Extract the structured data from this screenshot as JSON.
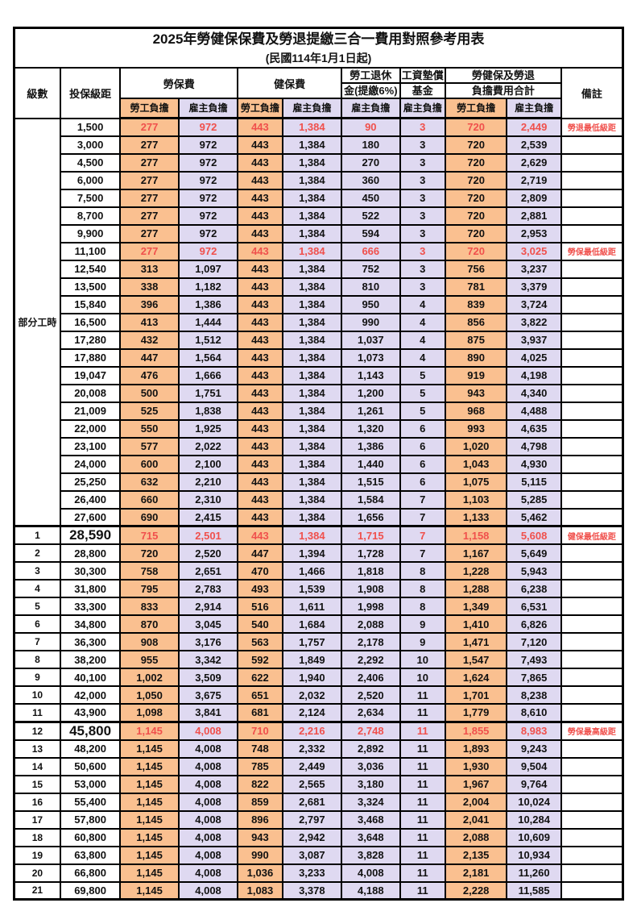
{
  "title": "2025年勞健保保費及勞退提繳三合一費用對照參考用表",
  "subtitle": "(民國114年1月1日起)",
  "colors": {
    "employee_burden_bg": "#FAC090",
    "employer_burden_bg": "#DFD9F1",
    "highlight_red": "#F0504C",
    "border": "#000000"
  },
  "header": {
    "level": "級數",
    "bracket": "投保級距",
    "labor_fee": "勞保費",
    "health_fee": "健保費",
    "pension_line1": "勞工退休",
    "pension_line2": "金(提繳6%)",
    "wage_fund_line1": "工資墊償",
    "wage_fund_line2": "基金",
    "total_line1": "勞健保及勞退",
    "total_line2": "負擔費用合計",
    "remark": "備註",
    "employee_burden": "勞工負擔",
    "employer_burden": "雇主負擔"
  },
  "table": {
    "part_time_label": "部分工時",
    "part_time_rows": [
      {
        "bracket": "1,500",
        "values": [
          "277",
          "972",
          "443",
          "1,384",
          "90",
          "3",
          "720",
          "2,449"
        ],
        "note": "勞退最低級距",
        "red": true,
        "key": false
      },
      {
        "bracket": "3,000",
        "values": [
          "277",
          "972",
          "443",
          "1,384",
          "180",
          "3",
          "720",
          "2,539"
        ],
        "note": "",
        "red": false,
        "key": false
      },
      {
        "bracket": "4,500",
        "values": [
          "277",
          "972",
          "443",
          "1,384",
          "270",
          "3",
          "720",
          "2,629"
        ],
        "note": "",
        "red": false,
        "key": false
      },
      {
        "bracket": "6,000",
        "values": [
          "277",
          "972",
          "443",
          "1,384",
          "360",
          "3",
          "720",
          "2,719"
        ],
        "note": "",
        "red": false,
        "key": false
      },
      {
        "bracket": "7,500",
        "values": [
          "277",
          "972",
          "443",
          "1,384",
          "450",
          "3",
          "720",
          "2,809"
        ],
        "note": "",
        "red": false,
        "key": false
      },
      {
        "bracket": "8,700",
        "values": [
          "277",
          "972",
          "443",
          "1,384",
          "522",
          "3",
          "720",
          "2,881"
        ],
        "note": "",
        "red": false,
        "key": false
      },
      {
        "bracket": "9,900",
        "values": [
          "277",
          "972",
          "443",
          "1,384",
          "594",
          "3",
          "720",
          "2,953"
        ],
        "note": "",
        "red": false,
        "key": false
      },
      {
        "bracket": "11,100",
        "values": [
          "277",
          "972",
          "443",
          "1,384",
          "666",
          "3",
          "720",
          "3,025"
        ],
        "note": "勞保最低級距",
        "red": true,
        "key": false
      },
      {
        "bracket": "12,540",
        "values": [
          "313",
          "1,097",
          "443",
          "1,384",
          "752",
          "3",
          "756",
          "3,237"
        ],
        "note": "",
        "red": false,
        "key": false
      },
      {
        "bracket": "13,500",
        "values": [
          "338",
          "1,182",
          "443",
          "1,384",
          "810",
          "3",
          "781",
          "3,379"
        ],
        "note": "",
        "red": false,
        "key": false
      },
      {
        "bracket": "15,840",
        "values": [
          "396",
          "1,386",
          "443",
          "1,384",
          "950",
          "4",
          "839",
          "3,724"
        ],
        "note": "",
        "red": false,
        "key": false
      },
      {
        "bracket": "16,500",
        "values": [
          "413",
          "1,444",
          "443",
          "1,384",
          "990",
          "4",
          "856",
          "3,822"
        ],
        "note": "",
        "red": false,
        "key": false
      },
      {
        "bracket": "17,280",
        "values": [
          "432",
          "1,512",
          "443",
          "1,384",
          "1,037",
          "4",
          "875",
          "3,937"
        ],
        "note": "",
        "red": false,
        "key": false
      },
      {
        "bracket": "17,880",
        "values": [
          "447",
          "1,564",
          "443",
          "1,384",
          "1,073",
          "4",
          "890",
          "4,025"
        ],
        "note": "",
        "red": false,
        "key": false
      },
      {
        "bracket": "19,047",
        "values": [
          "476",
          "1,666",
          "443",
          "1,384",
          "1,143",
          "5",
          "919",
          "4,198"
        ],
        "note": "",
        "red": false,
        "key": false
      },
      {
        "bracket": "20,008",
        "values": [
          "500",
          "1,751",
          "443",
          "1,384",
          "1,200",
          "5",
          "943",
          "4,340"
        ],
        "note": "",
        "red": false,
        "key": false
      },
      {
        "bracket": "21,009",
        "values": [
          "525",
          "1,838",
          "443",
          "1,384",
          "1,261",
          "5",
          "968",
          "4,488"
        ],
        "note": "",
        "red": false,
        "key": false
      },
      {
        "bracket": "22,000",
        "values": [
          "550",
          "1,925",
          "443",
          "1,384",
          "1,320",
          "6",
          "993",
          "4,635"
        ],
        "note": "",
        "red": false,
        "key": false
      },
      {
        "bracket": "23,100",
        "values": [
          "577",
          "2,022",
          "443",
          "1,384",
          "1,386",
          "6",
          "1,020",
          "4,798"
        ],
        "note": "",
        "red": false,
        "key": false
      },
      {
        "bracket": "24,000",
        "values": [
          "600",
          "2,100",
          "443",
          "1,384",
          "1,440",
          "6",
          "1,043",
          "4,930"
        ],
        "note": "",
        "red": false,
        "key": false
      },
      {
        "bracket": "25,250",
        "values": [
          "632",
          "2,210",
          "443",
          "1,384",
          "1,515",
          "6",
          "1,075",
          "5,115"
        ],
        "note": "",
        "red": false,
        "key": false
      },
      {
        "bracket": "26,400",
        "values": [
          "660",
          "2,310",
          "443",
          "1,384",
          "1,584",
          "7",
          "1,103",
          "5,285"
        ],
        "note": "",
        "red": false,
        "key": false
      },
      {
        "bracket": "27,600",
        "values": [
          "690",
          "2,415",
          "443",
          "1,384",
          "1,656",
          "7",
          "1,133",
          "5,462"
        ],
        "note": "",
        "red": false,
        "key": false
      }
    ],
    "numbered_rows": [
      {
        "level": "1",
        "bracket": "28,590",
        "values": [
          "715",
          "2,501",
          "443",
          "1,384",
          "1,715",
          "7",
          "1,158",
          "5,608"
        ],
        "note": "健保最低級距",
        "red": true,
        "key": true
      },
      {
        "level": "2",
        "bracket": "28,800",
        "values": [
          "720",
          "2,520",
          "447",
          "1,394",
          "1,728",
          "7",
          "1,167",
          "5,649"
        ],
        "note": "",
        "red": false,
        "key": false
      },
      {
        "level": "3",
        "bracket": "30,300",
        "values": [
          "758",
          "2,651",
          "470",
          "1,466",
          "1,818",
          "8",
          "1,228",
          "5,943"
        ],
        "note": "",
        "red": false,
        "key": false
      },
      {
        "level": "4",
        "bracket": "31,800",
        "values": [
          "795",
          "2,783",
          "493",
          "1,539",
          "1,908",
          "8",
          "1,288",
          "6,238"
        ],
        "note": "",
        "red": false,
        "key": false
      },
      {
        "level": "5",
        "bracket": "33,300",
        "values": [
          "833",
          "2,914",
          "516",
          "1,611",
          "1,998",
          "8",
          "1,349",
          "6,531"
        ],
        "note": "",
        "red": false,
        "key": false
      },
      {
        "level": "6",
        "bracket": "34,800",
        "values": [
          "870",
          "3,045",
          "540",
          "1,684",
          "2,088",
          "9",
          "1,410",
          "6,826"
        ],
        "note": "",
        "red": false,
        "key": false
      },
      {
        "level": "7",
        "bracket": "36,300",
        "values": [
          "908",
          "3,176",
          "563",
          "1,757",
          "2,178",
          "9",
          "1,471",
          "7,120"
        ],
        "note": "",
        "red": false,
        "key": false
      },
      {
        "level": "8",
        "bracket": "38,200",
        "values": [
          "955",
          "3,342",
          "592",
          "1,849",
          "2,292",
          "10",
          "1,547",
          "7,493"
        ],
        "note": "",
        "red": false,
        "key": false
      },
      {
        "level": "9",
        "bracket": "40,100",
        "values": [
          "1,002",
          "3,509",
          "622",
          "1,940",
          "2,406",
          "10",
          "1,624",
          "7,865"
        ],
        "note": "",
        "red": false,
        "key": false
      },
      {
        "level": "10",
        "bracket": "42,000",
        "values": [
          "1,050",
          "3,675",
          "651",
          "2,032",
          "2,520",
          "11",
          "1,701",
          "8,238"
        ],
        "note": "",
        "red": false,
        "key": false
      },
      {
        "level": "11",
        "bracket": "43,900",
        "values": [
          "1,098",
          "3,841",
          "681",
          "2,124",
          "2,634",
          "11",
          "1,779",
          "8,610"
        ],
        "note": "",
        "red": false,
        "key": false
      },
      {
        "level": "12",
        "bracket": "45,800",
        "values": [
          "1,145",
          "4,008",
          "710",
          "2,216",
          "2,748",
          "11",
          "1,855",
          "8,983"
        ],
        "note": "勞保最高級距",
        "red": true,
        "key": true
      },
      {
        "level": "13",
        "bracket": "48,200",
        "values": [
          "1,145",
          "4,008",
          "748",
          "2,332",
          "2,892",
          "11",
          "1,893",
          "9,243"
        ],
        "note": "",
        "red": false,
        "key": false
      },
      {
        "level": "14",
        "bracket": "50,600",
        "values": [
          "1,145",
          "4,008",
          "785",
          "2,449",
          "3,036",
          "11",
          "1,930",
          "9,504"
        ],
        "note": "",
        "red": false,
        "key": false
      },
      {
        "level": "15",
        "bracket": "53,000",
        "values": [
          "1,145",
          "4,008",
          "822",
          "2,565",
          "3,180",
          "11",
          "1,967",
          "9,764"
        ],
        "note": "",
        "red": false,
        "key": false
      },
      {
        "level": "16",
        "bracket": "55,400",
        "values": [
          "1,145",
          "4,008",
          "859",
          "2,681",
          "3,324",
          "11",
          "2,004",
          "10,024"
        ],
        "note": "",
        "red": false,
        "key": false
      },
      {
        "level": "17",
        "bracket": "57,800",
        "values": [
          "1,145",
          "4,008",
          "896",
          "2,797",
          "3,468",
          "11",
          "2,041",
          "10,284"
        ],
        "note": "",
        "red": false,
        "key": false
      },
      {
        "level": "18",
        "bracket": "60,800",
        "values": [
          "1,145",
          "4,008",
          "943",
          "2,942",
          "3,648",
          "11",
          "2,088",
          "10,609"
        ],
        "note": "",
        "red": false,
        "key": false
      },
      {
        "level": "19",
        "bracket": "63,800",
        "values": [
          "1,145",
          "4,008",
          "990",
          "3,087",
          "3,828",
          "11",
          "2,135",
          "10,934"
        ],
        "note": "",
        "red": false,
        "key": false
      },
      {
        "level": "20",
        "bracket": "66,800",
        "values": [
          "1,145",
          "4,008",
          "1,036",
          "3,233",
          "4,008",
          "11",
          "2,181",
          "11,260"
        ],
        "note": "",
        "red": false,
        "key": false
      },
      {
        "level": "21",
        "bracket": "69,800",
        "values": [
          "1,145",
          "4,008",
          "1,083",
          "3,378",
          "4,188",
          "11",
          "2,228",
          "11,585"
        ],
        "note": "",
        "red": false,
        "key": false
      }
    ],
    "value_column_styles": [
      "emp",
      "er",
      "emp",
      "er",
      "er",
      "er",
      "emp",
      "er"
    ]
  }
}
